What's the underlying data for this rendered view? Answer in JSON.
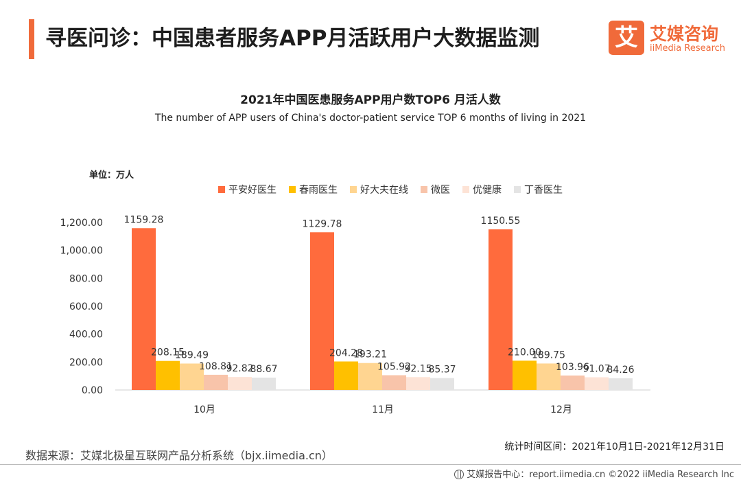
{
  "header": {
    "title": "寻医问诊：中国患者服务APP月活跃用户大数据监测",
    "brand_mark": "艾",
    "brand_cn": "艾媒咨询",
    "brand_en": "iiMedia Research"
  },
  "colors": {
    "accent": "#f06a3a",
    "series": [
      "#ff6b3d",
      "#ffc000",
      "#ffd591",
      "#f8c4aa",
      "#fde3d6",
      "#e4e4e4"
    ]
  },
  "chart_data": {
    "type": "bar",
    "title": "2021年中国医患服务APP用户数TOP6 月活人数",
    "subtitle": "The number of APP users of China's doctor-patient service TOP 6 months of living in 2021",
    "unit": "单位：万人",
    "categories": [
      "10月",
      "11月",
      "12月"
    ],
    "series": [
      {
        "name": "平安好医生",
        "values": [
          1159.28,
          1129.78,
          1150.55
        ]
      },
      {
        "name": "春雨医生",
        "values": [
          208.15,
          204.28,
          210.0
        ]
      },
      {
        "name": "好大夫在线",
        "values": [
          189.49,
          193.21,
          189.75
        ]
      },
      {
        "name": "微医",
        "values": [
          108.81,
          105.92,
          103.96
        ]
      },
      {
        "name": "优健康",
        "values": [
          92.82,
          92.15,
          91.07
        ]
      },
      {
        "name": "丁香医生",
        "values": [
          88.67,
          85.37,
          84.26
        ]
      }
    ],
    "value_labels": [
      [
        "1159.28",
        "1129.78",
        "1150.55"
      ],
      [
        "208.15",
        "204.28",
        "210.00"
      ],
      [
        "189.49",
        "193.21",
        "189.75"
      ],
      [
        "108.81",
        "105.92",
        "103.96"
      ],
      [
        "92.82",
        "92.15",
        "91.07"
      ],
      [
        "88.67",
        "85.37",
        "84.26"
      ]
    ],
    "yticks": [
      "0.00",
      "200.00",
      "400.00",
      "600.00",
      "800.00",
      "1,000.00",
      "1,200.00"
    ],
    "ylim": [
      0,
      1200
    ],
    "legend": "top-center",
    "grid": false
  },
  "footer": {
    "source": "数据来源：艾媒北极星互联网产品分析系统（bjx.iimedia.cn）",
    "period": "统计时间区间：2021年10月1日-2021年12月31日",
    "report": "艾媒报告中心：report.iimedia.cn   ©2022  iiMedia Research  Inc"
  }
}
